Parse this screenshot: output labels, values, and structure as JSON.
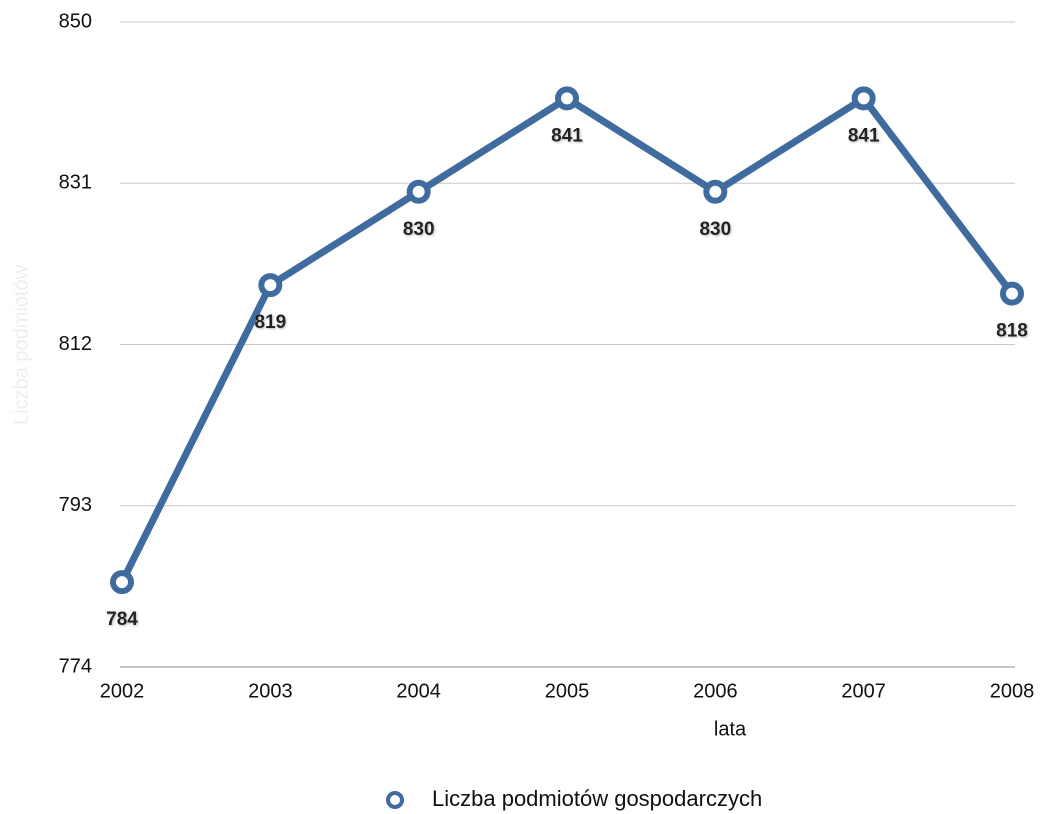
{
  "chart_data": {
    "type": "line",
    "xlabel": "lata",
    "ylabel": "Liczba podmiotów",
    "categories": [
      "2002",
      "2003",
      "2004",
      "2005",
      "2006",
      "2007",
      "2008"
    ],
    "series": [
      {
        "name": "Liczba podmiotów gospodarczych",
        "color": "#3f6b9e",
        "values": [
          784,
          819,
          830,
          841,
          830,
          841,
          818
        ]
      }
    ],
    "ylim": [
      774,
      850
    ],
    "yticks": [
      774,
      793,
      812,
      831,
      850
    ],
    "grid": true,
    "legend": "bottom"
  }
}
